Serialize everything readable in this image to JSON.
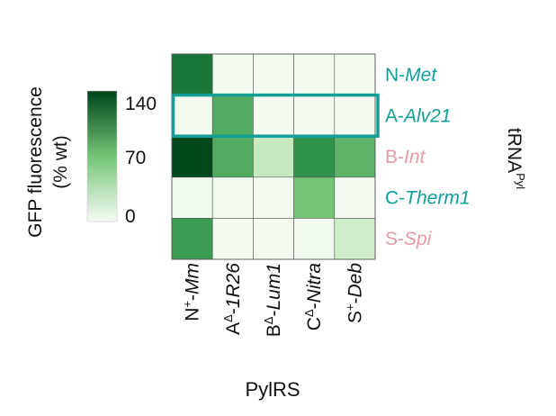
{
  "colors": {
    "scale_low": "#f7fcf5",
    "scale_high": "#00441b",
    "highlight_box": "#139e98",
    "label_teal": "#139e98",
    "label_pink": "#e39aa8",
    "grid_border": "#555555"
  },
  "chart_data": {
    "type": "heatmap",
    "xlabel": "PylRS",
    "ylabel": "tRNA",
    "ylabel_superscript": "Pyl",
    "colorbar": {
      "title_line1": "GFP fluorescence",
      "title_line2": "(% wt)",
      "ticks": [
        "140",
        "70",
        "0"
      ],
      "tick_values": [
        140,
        70,
        0
      ],
      "range": [
        0,
        140
      ]
    },
    "columns": [
      {
        "prefix": "N",
        "sup": "+",
        "sep": "-",
        "name": "Mm"
      },
      {
        "prefix": "A",
        "sup": "Δ",
        "sep": "-",
        "name": "1R26"
      },
      {
        "prefix": "B",
        "sup": "Δ",
        "sep": "-",
        "name": "Lum1"
      },
      {
        "prefix": "C",
        "sup": "Δ",
        "sep": "-",
        "name": "Nitra"
      },
      {
        "prefix": "S",
        "sup": "+",
        "sep": "-",
        "name": "Deb"
      }
    ],
    "rows": [
      {
        "prefix": "N-",
        "name": "Met",
        "color_key": "label_teal"
      },
      {
        "prefix": "A-",
        "name": "Alv21",
        "color_key": "label_teal"
      },
      {
        "prefix": "B-",
        "name": "Int",
        "color_key": "label_pink"
      },
      {
        "prefix": "C-",
        "name": "Therm1",
        "color_key": "label_teal"
      },
      {
        "prefix": "S-",
        "name": "Spi",
        "color_key": "label_pink"
      }
    ],
    "values": [
      [
        115,
        3,
        3,
        3,
        3
      ],
      [
        3,
        85,
        3,
        3,
        3
      ],
      [
        138,
        85,
        35,
        100,
        80
      ],
      [
        5,
        3,
        3,
        70,
        3
      ],
      [
        95,
        3,
        3,
        5,
        30
      ]
    ],
    "highlighted_row": 1
  }
}
